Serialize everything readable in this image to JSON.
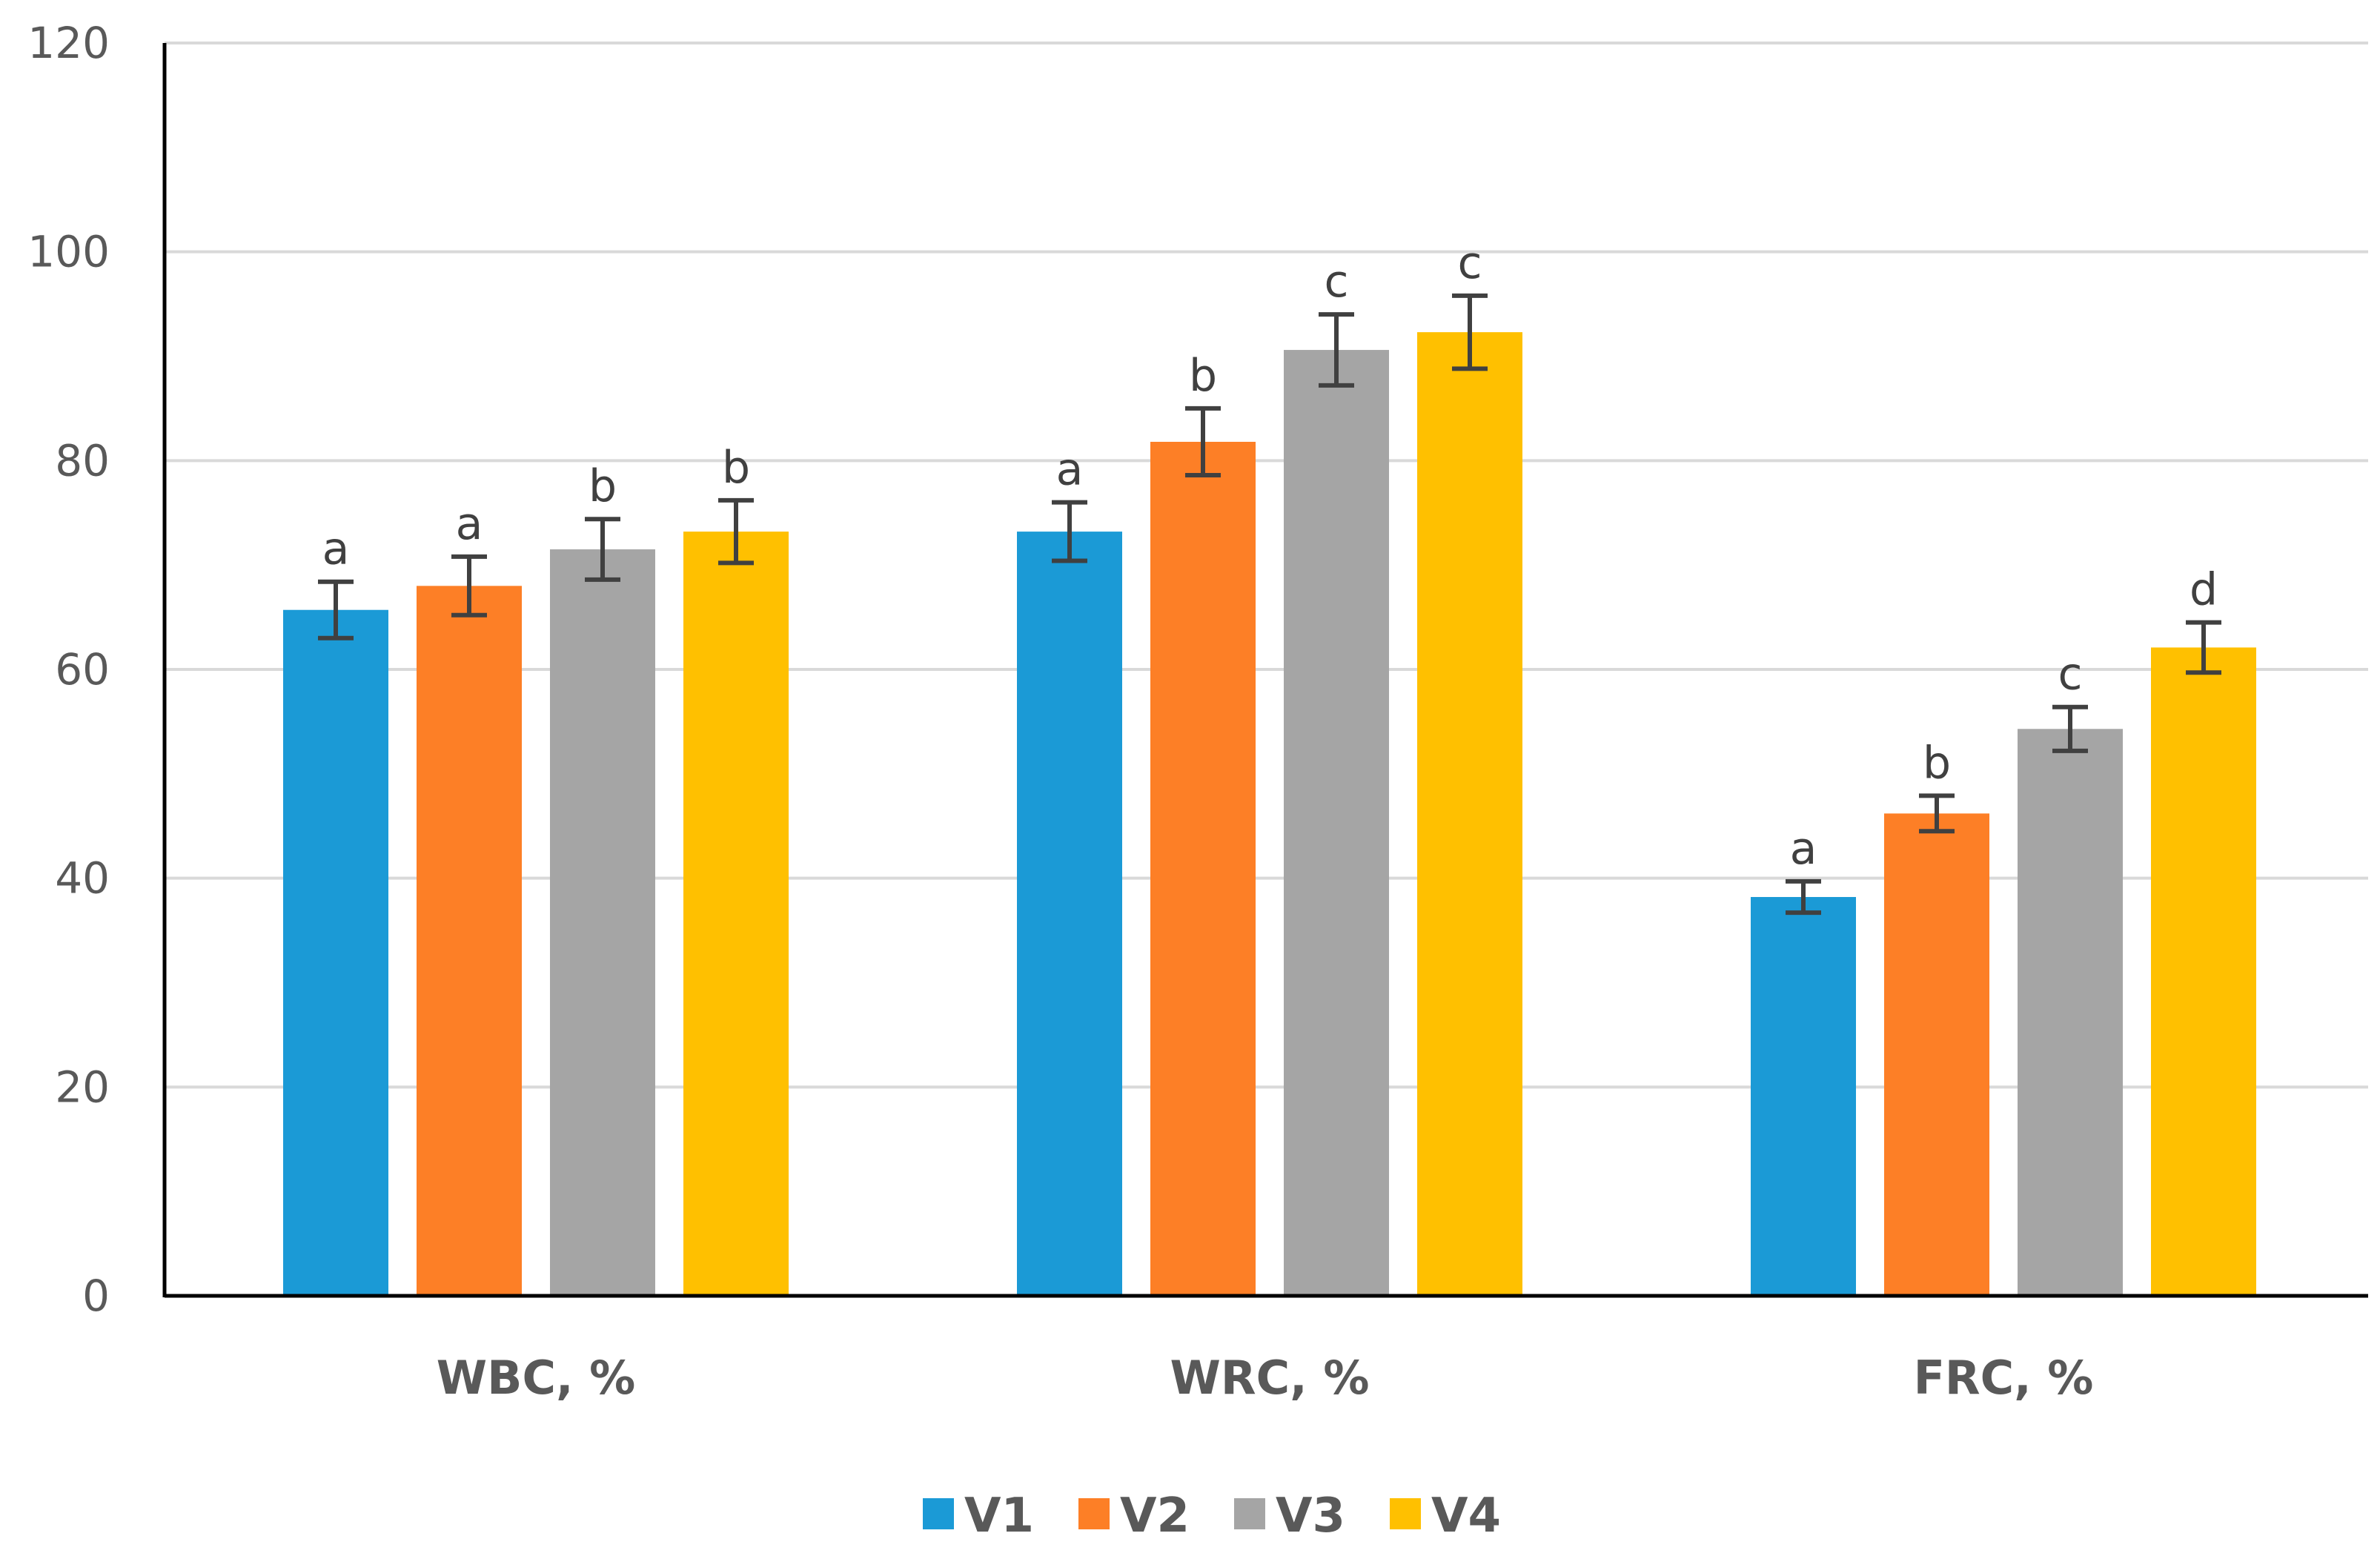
{
  "chart_data": {
    "type": "bar",
    "title": "",
    "xlabel": "",
    "ylabel": "",
    "ylim": [
      0,
      120
    ],
    "yticks": [
      0,
      20,
      40,
      60,
      80,
      100,
      120
    ],
    "grid": true,
    "legend_position": "bottom-center",
    "categories": [
      "WBC, %",
      "WRC, %",
      "FRC, %"
    ],
    "series": [
      {
        "name": "V1",
        "color": "#1b9ad6",
        "values": [
          65.7,
          73.2,
          38.2
        ],
        "errors": [
          2.7,
          2.8,
          1.5
        ],
        "letters": [
          "a",
          "a",
          "a"
        ]
      },
      {
        "name": "V2",
        "color": "#fd7f26",
        "values": [
          68.0,
          81.8,
          46.2
        ],
        "errors": [
          2.8,
          3.2,
          1.7
        ],
        "letters": [
          "a",
          "b",
          "b"
        ]
      },
      {
        "name": "V3",
        "color": "#a5a5a5",
        "values": [
          71.5,
          90.6,
          54.3
        ],
        "errors": [
          2.9,
          3.4,
          2.1
        ],
        "letters": [
          "b",
          "c",
          "c"
        ]
      },
      {
        "name": "V4",
        "color": "#ffc000",
        "values": [
          73.2,
          92.3,
          62.1
        ],
        "errors": [
          3.0,
          3.5,
          2.4
        ],
        "letters": [
          "b",
          "c",
          "d"
        ]
      }
    ]
  }
}
